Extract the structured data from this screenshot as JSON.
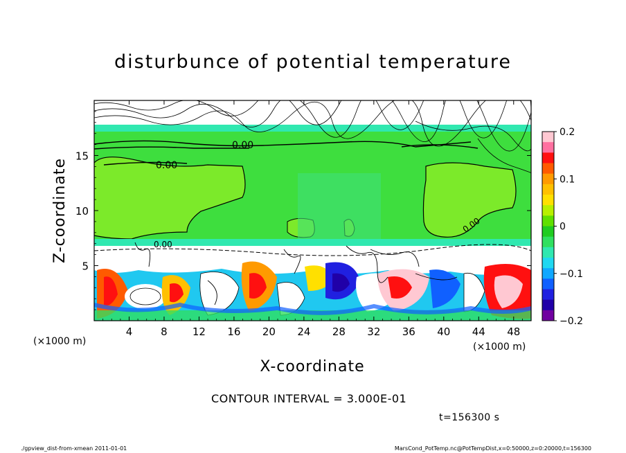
{
  "chart_data": {
    "type": "heatmap",
    "title": "disturbunce of potential temperature",
    "xlabel": "X-coordinate",
    "ylabel": "Z-coordinate",
    "x_unit": "(×1000 m)",
    "y_unit": "(×1000 m)",
    "xlim": [
      0,
      50
    ],
    "ylim": [
      0,
      20
    ],
    "xticks": [
      4,
      8,
      12,
      16,
      20,
      24,
      28,
      32,
      36,
      40,
      44,
      48
    ],
    "yticks": [
      5,
      10,
      15
    ],
    "colorbar": {
      "min": -0.2,
      "max": 0.2,
      "tick_labels": [
        "0.2",
        "0.1",
        "0",
        "−0.1",
        "−0.2"
      ],
      "tick_values": [
        0.2,
        0.1,
        0,
        -0.1,
        -0.2
      ],
      "colors": [
        "#ffc8d2",
        "#ff70a0",
        "#ff1010",
        "#ff5a00",
        "#ff9a00",
        "#ffc000",
        "#ffe000",
        "#b8f000",
        "#60e000",
        "#20cc20",
        "#30e060",
        "#30e8b0",
        "#20d8f0",
        "#10a8ff",
        "#1060ff",
        "#2020e0",
        "#2000a8",
        "#7000a0"
      ]
    },
    "contour_labels": [
      "0.00",
      "0.00",
      "0.00",
      "0.00"
    ],
    "contour_interval": "CONTOUR INTERVAL = 3.000E-01",
    "time_label": "t=156300 s"
  },
  "footer": {
    "left": "./gpview_dist-from-xmean  2011-01-01",
    "right": "MarsCond_PotTemp.nc@PotTempDist,x=0:50000,z=0:20000,t=156300"
  }
}
